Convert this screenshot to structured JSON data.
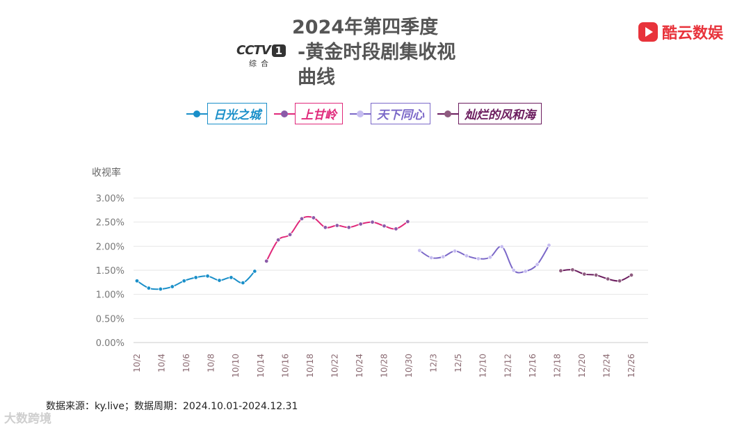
{
  "header": {
    "title_line1": "2024年第四季度",
    "title_line2": "-黄金时段剧集收视曲线",
    "channel_logo_text": "CCTV",
    "channel_logo_num": "1",
    "channel_logo_sub": "综合",
    "brand_name": "酷云数娱"
  },
  "footer": {
    "source": "数据来源：ky.live；数据周期：2024.10.01-2024.12.31",
    "watermark": "大数跨境"
  },
  "chart_data": {
    "type": "line",
    "ylabel": "收视率",
    "ylim": [
      0,
      3.0
    ],
    "yticks": [
      "0.00%",
      "0.50%",
      "1.00%",
      "1.50%",
      "2.00%",
      "2.50%",
      "3.00%"
    ],
    "xticks": [
      "10/2",
      "10/4",
      "10/6",
      "10/8",
      "10/10",
      "10/14",
      "10/16",
      "10/18",
      "10/22",
      "10/24",
      "10/28",
      "10/30",
      "12/3",
      "12/5",
      "12/10",
      "12/12",
      "12/16",
      "12/18",
      "12/20",
      "12/24",
      "12/26"
    ],
    "series": [
      {
        "name": "日光之城",
        "color": "#1a8fc9",
        "dot": "#1a8fc9",
        "values": [
          1.28,
          1.13,
          1.11,
          1.16,
          1.28,
          1.35,
          1.38,
          1.29,
          1.35,
          1.24,
          1.48
        ]
      },
      {
        "name": "上甘岭",
        "color": "#e0287a",
        "dot": "#8b5aa8",
        "values": [
          1.69,
          2.13,
          2.24,
          2.57,
          2.59,
          2.39,
          2.43,
          2.39,
          2.46,
          2.5,
          2.42,
          2.36,
          2.51
        ]
      },
      {
        "name": "天下同心",
        "color": "#7b68c8",
        "dot": "#c6bdf0",
        "values": [
          1.91,
          1.76,
          1.78,
          1.9,
          1.8,
          1.74,
          1.77,
          1.99,
          1.5,
          1.48,
          1.62,
          2.02
        ]
      },
      {
        "name": "灿烂的风和海",
        "color": "#6b1c5e",
        "dot": "#8e5b7f",
        "values": [
          1.49,
          1.51,
          1.42,
          1.4,
          1.32,
          1.28,
          1.4
        ]
      }
    ]
  }
}
